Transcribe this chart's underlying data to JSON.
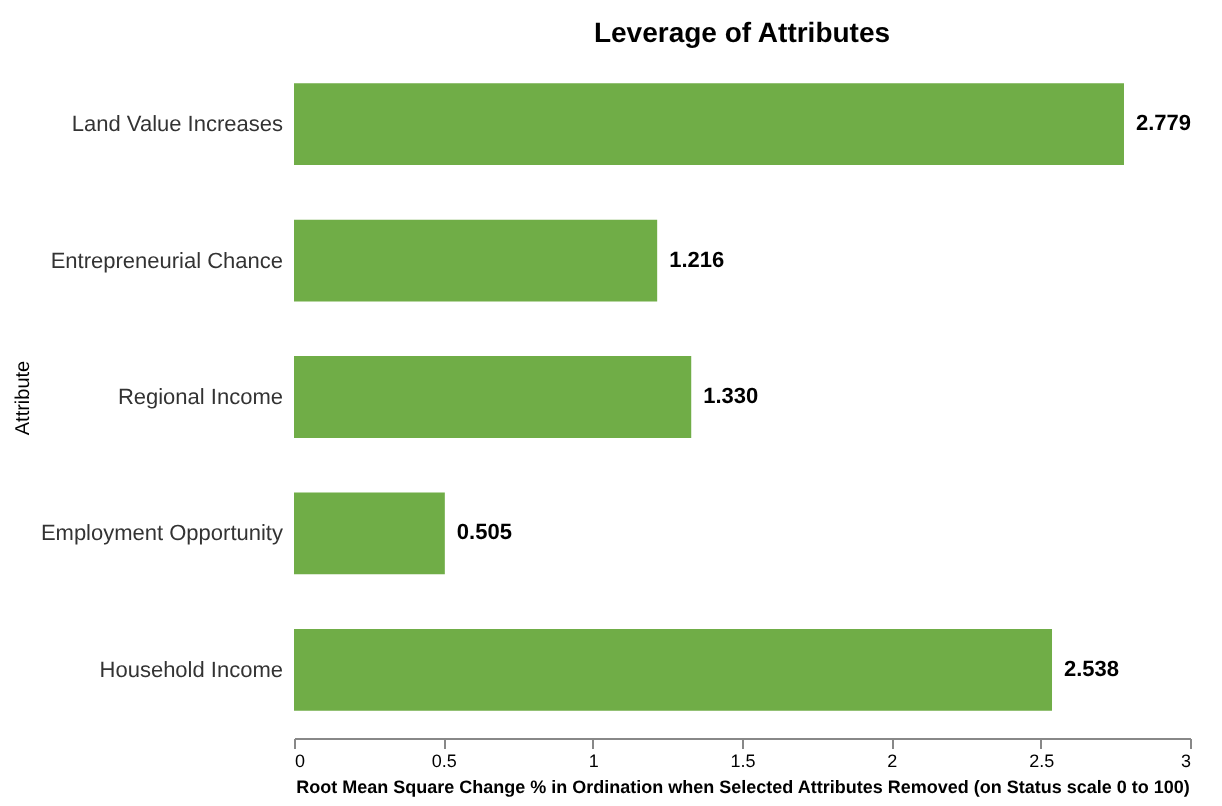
{
  "chart_data": {
    "type": "bar",
    "orientation": "horizontal",
    "title": "Leverage of Attributes",
    "xlabel": "Root Mean Square Change % in Ordination when Selected Attributes Removed (on Status scale 0 to 100)",
    "ylabel": "Attribute",
    "categories": [
      "Land Value Increases",
      "Entrepreneurial Chance",
      "Regional Income",
      "Employment Opportunity",
      "Household Income"
    ],
    "values": [
      2.779,
      1.216,
      1.33,
      0.505,
      2.538
    ],
    "value_labels": [
      "2.779",
      "1.216",
      "1.330",
      "0.505",
      "2.538"
    ],
    "color": "#70ad47",
    "xlim": [
      0,
      3
    ],
    "xticks": [
      0,
      0.5,
      1,
      1.5,
      2,
      2.5,
      3
    ],
    "grid": false
  }
}
